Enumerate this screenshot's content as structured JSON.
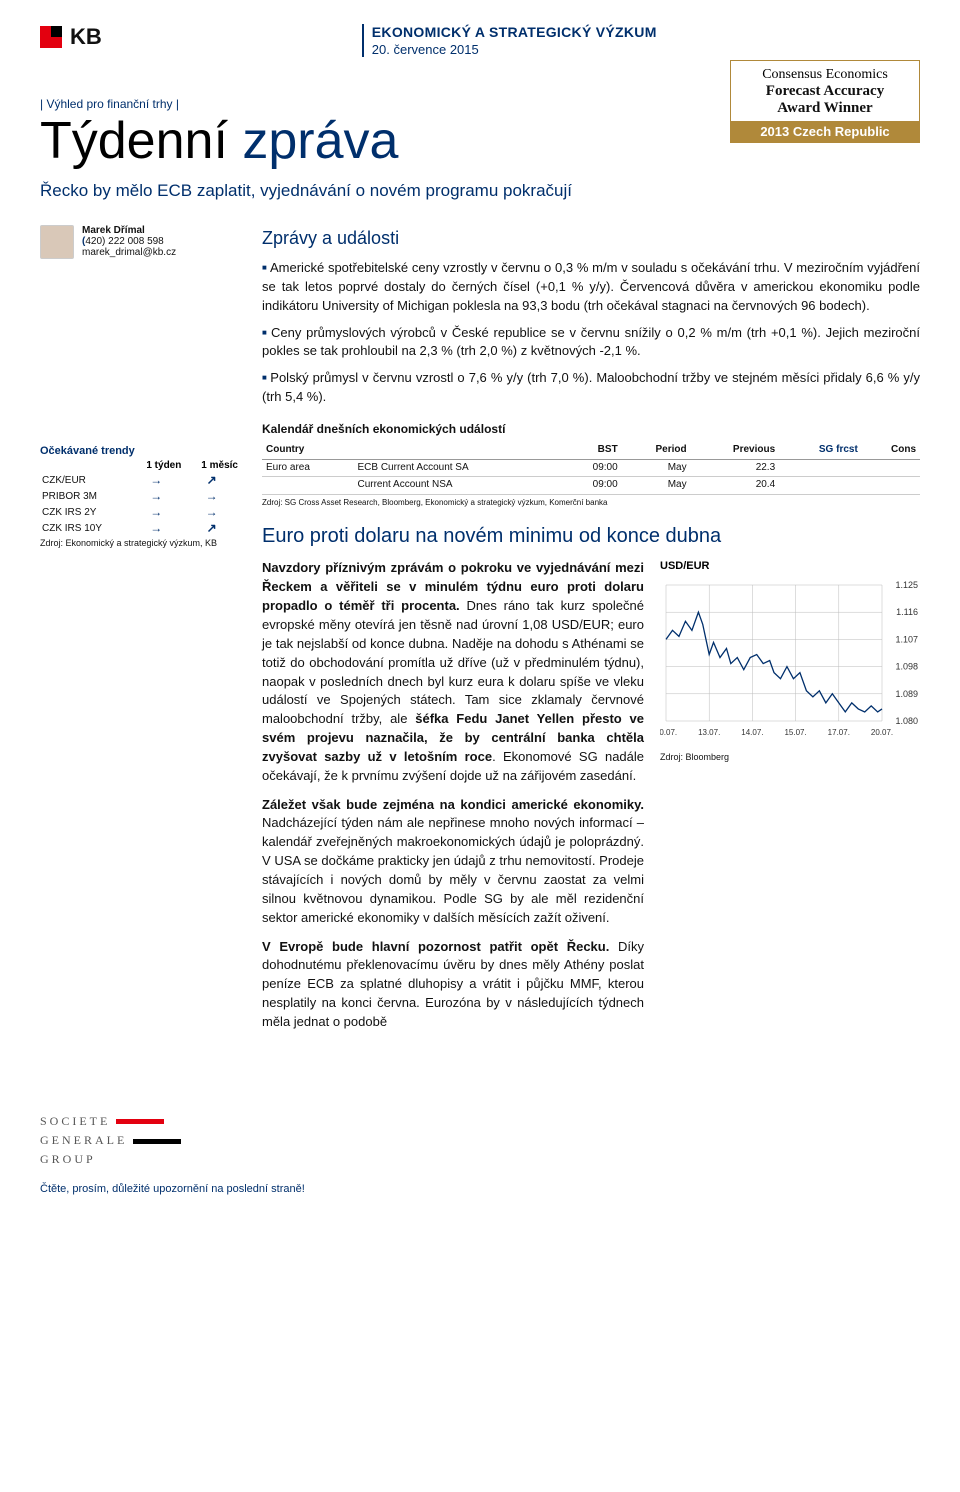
{
  "header": {
    "bank_name": "KB",
    "dept_line": "EKONOMICKÝ A STRATEGICKÝ VÝZKUM",
    "date_line": "20. července 2015"
  },
  "award": {
    "l1": "Consensus Economics",
    "l2": "Forecast Accuracy",
    "l3": "Award Winner",
    "l4": "2013 Czech Republic"
  },
  "outlook": "|  Výhled pro finanční trhy  |",
  "title_part1": "Týdenní ",
  "title_part2": "zpráva",
  "subtitle": "Řecko by mělo ECB zaplatit, vyjednávání o novém programu pokračují",
  "author": {
    "name": "Marek Dřímal",
    "phone_prefix": "(",
    "phone": "420) 222 008 598",
    "email": "marek_drimal@kb.cz"
  },
  "news": {
    "title": "Zprávy a události",
    "bullets": [
      "Americké spotřebitelské ceny vzrostly v červnu o 0,3 % m/m v souladu s očekávání trhu. V meziročním vyjádření se tak letos poprvé dostaly do černých čísel (+0,1 % y/y). Červencová důvěra v americkou ekonomiku podle indikátoru University of Michigan poklesla na 93,3 bodu (trh očekával stagnaci na červnových 96 bodech).",
      "Ceny průmyslových výrobců v České republice se v červnu snížily o 0,2 % m/m (trh +0,1 %). Jejich meziroční pokles se tak prohloubil na 2,3 % (trh 2,0 %) z květnových -2,1 %.",
      "Polský průmysl v červnu vzrostl o 7,6 % y/y (trh 7,0 %). Maloobchodní tržby ve stejném měsíci přidaly 6,6 % y/y (trh 5,4 %)."
    ]
  },
  "trends": {
    "title": "Očekávané trendy",
    "col1": "1 týden",
    "col2": "1 měsíc",
    "rows": [
      {
        "label": "CZK/EUR",
        "c1": "→",
        "c2": "↗"
      },
      {
        "label": "PRIBOR 3M",
        "c1": "→",
        "c2": "→"
      },
      {
        "label": "CZK IRS 2Y",
        "c1": "→",
        "c2": "→"
      },
      {
        "label": "CZK IRS 10Y",
        "c1": "→",
        "c2": "↗"
      }
    ],
    "source": "Zdroj: Ekonomický a strategický výzkum, KB"
  },
  "calendar": {
    "title": "Kalendář dnešních ekonomických událostí",
    "headers": {
      "country": "Country",
      "event": "",
      "bst": "BST",
      "period": "Period",
      "previous": "Previous",
      "sg": "SG frcst",
      "cons": "Cons"
    },
    "rows": [
      {
        "country": "Euro area",
        "event": "ECB Current Account SA",
        "bst": "09:00",
        "period": "May",
        "previous": "22.3",
        "sg": "",
        "cons": ""
      },
      {
        "country": "",
        "event": "Current Account NSA",
        "bst": "09:00",
        "period": "May",
        "previous": "20.4",
        "sg": "",
        "cons": ""
      }
    ],
    "source": "Zdroj: SG Cross Asset Research, Bloomberg, Ekonomický a strategický výzkum, Komerční banka"
  },
  "fx": {
    "title": "Euro proti dolaru na novém minimu od konce dubna",
    "para1_bold": "Navzdory příznivým zprávám o pokroku ve vyjednávání mezi Řeckem a věřiteli se v minulém týdnu euro proti dolaru propadlo o téměř tři procenta.",
    "para1_rest": " Dnes ráno tak kurz společné evropské měny otevírá jen těsně nad úrovní 1,08 USD/EUR; euro je tak nejslabší od konce dubna. Naděje na dohodu s Athénami se totiž do obchodování promítla už dříve (už v předminulém týdnu), naopak v posledních dnech byl kurz eura k dolaru spíše ve vleku událostí ve Spojených státech. Tam sice zklamaly červnové maloobchodní tržby, ale ",
    "para1_bold2": "šéfka Fedu Janet Yellen přesto ve svém projevu naznačila, že by centrální banka chtěla zvyšovat sazby už v letošním roce",
    "para1_rest2": ". Ekonomové SG nadále očekávají, že k prvnímu zvýšení dojde už na zářijovém zasedání.",
    "para2_bold": "Záležet však bude zejména na kondici americké ekonomiky.",
    "para2_rest": " Nadcházející týden nám ale nepřinese mnoho nových informací – kalendář zveřejněných makroekonomických údajů je poloprázdný. V USA se dočkáme prakticky jen údajů z trhu nemovitostí. Prodeje stávajících i nových domů by měly v červnu zaostat za velmi silnou květnovou dynamikou. Podle SG by ale měl rezidenční sektor americké ekonomiky v dalších měsících zažít oživení.",
    "para3_bold": "V Evropě bude hlavní pozornost patřit opět Řecku.",
    "para3_rest": " Díky dohodnutému překlenovacímu úvěru by dnes měly Athény poslat peníze ECB za splatné dluhopisy a vrátit i půjčku MMF, kterou nesplatily na konci června. Eurozóna by v následujících týdnech měla jednat o podobě"
  },
  "chart": {
    "title": "USD/EUR",
    "x_ticks": [
      "10.07.",
      "13.07.",
      "14.07.",
      "15.07.",
      "17.07.",
      "20.07."
    ],
    "y_ticks": [
      "1.125",
      "1.116",
      "1.107",
      "1.098",
      "1.089",
      "1.080"
    ],
    "y_min": 1.08,
    "y_max": 1.125,
    "line_color": "#002f6c",
    "grid_color": "#bbb",
    "points": [
      [
        0.0,
        1.107
      ],
      [
        0.03,
        1.11
      ],
      [
        0.06,
        1.108
      ],
      [
        0.09,
        1.113
      ],
      [
        0.12,
        1.11
      ],
      [
        0.15,
        1.116
      ],
      [
        0.17,
        1.112
      ],
      [
        0.2,
        1.102
      ],
      [
        0.22,
        1.106
      ],
      [
        0.25,
        1.101
      ],
      [
        0.28,
        1.104
      ],
      [
        0.3,
        1.099
      ],
      [
        0.33,
        1.101
      ],
      [
        0.36,
        1.097
      ],
      [
        0.39,
        1.101
      ],
      [
        0.42,
        1.102
      ],
      [
        0.45,
        1.099
      ],
      [
        0.48,
        1.1
      ],
      [
        0.5,
        1.096
      ],
      [
        0.53,
        1.094
      ],
      [
        0.56,
        1.098
      ],
      [
        0.59,
        1.094
      ],
      [
        0.62,
        1.096
      ],
      [
        0.65,
        1.09
      ],
      [
        0.68,
        1.088
      ],
      [
        0.71,
        1.09
      ],
      [
        0.74,
        1.086
      ],
      [
        0.77,
        1.089
      ],
      [
        0.8,
        1.086
      ],
      [
        0.83,
        1.083
      ],
      [
        0.86,
        1.086
      ],
      [
        0.89,
        1.084
      ],
      [
        0.92,
        1.083
      ],
      [
        0.95,
        1.085
      ],
      [
        0.98,
        1.083
      ],
      [
        1.0,
        1.084
      ]
    ],
    "source": "Zdroj: Bloomberg"
  },
  "footer": {
    "sg1": "SOCIETE",
    "sg2": "GENERALE",
    "sg3": "GROUP",
    "disclaimer": "Čtěte, prosím, důležité upozornění na poslední straně!"
  }
}
